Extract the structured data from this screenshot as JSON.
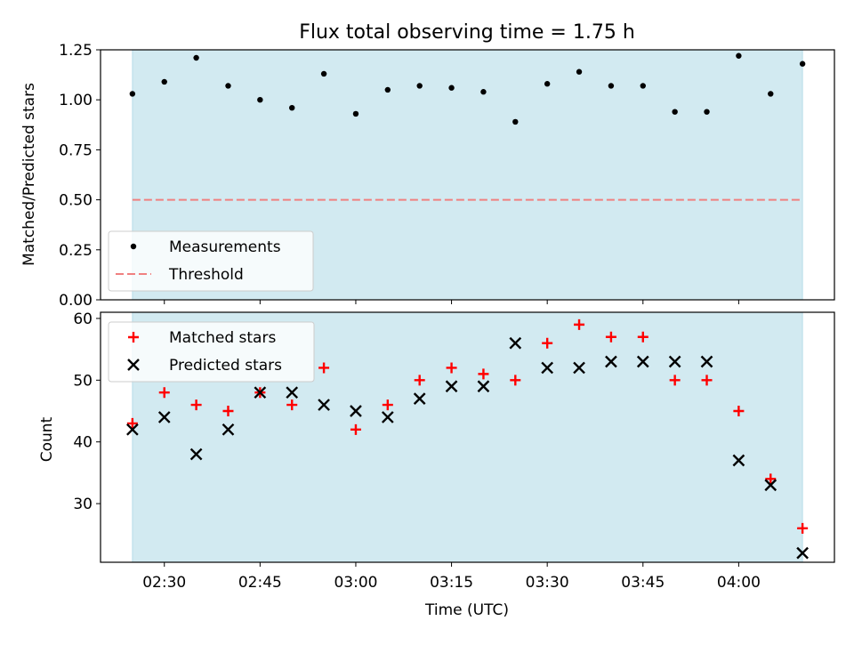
{
  "chart_data": [
    {
      "type": "scatter",
      "title": "Flux total observing time = 1.75 h",
      "ylabel": "Matched/Predicted stars",
      "xlabel": "",
      "ylim": [
        0,
        1.25
      ],
      "yticks": [
        "0.00",
        "0.25",
        "0.50",
        "0.75",
        "1.00",
        "1.25"
      ],
      "x": [
        "02:25",
        "02:30",
        "02:35",
        "02:40",
        "02:45",
        "02:50",
        "02:55",
        "03:00",
        "03:05",
        "03:10",
        "03:15",
        "03:20",
        "03:25",
        "03:30",
        "03:35",
        "03:40",
        "03:45",
        "03:50",
        "03:55",
        "04:00",
        "04:05",
        "04:10"
      ],
      "series": [
        {
          "name": "Measurements",
          "marker": "dot",
          "color": "#000000",
          "values": [
            1.03,
            1.09,
            1.21,
            1.07,
            1.0,
            0.96,
            1.13,
            0.93,
            1.05,
            1.07,
            1.06,
            1.04,
            0.89,
            1.08,
            1.14,
            1.07,
            1.07,
            0.94,
            0.94,
            1.22,
            1.03,
            1.18
          ]
        },
        {
          "name": "Threshold",
          "style": "dashed",
          "color": "#f08080",
          "values": [
            0.5
          ]
        }
      ],
      "shaded_region": {
        "from": "02:25",
        "to": "04:10",
        "color": "#add8e6"
      },
      "legend": "lower-left",
      "grid": false
    },
    {
      "type": "scatter",
      "title": "",
      "ylabel": "Count",
      "xlabel": "Time (UTC)",
      "ylim": [
        20.5,
        61
      ],
      "yticks": [
        "30",
        "40",
        "50",
        "60"
      ],
      "xticks": [
        "02:30",
        "02:45",
        "03:00",
        "03:15",
        "03:30",
        "03:45",
        "04:00"
      ],
      "x": [
        "02:25",
        "02:30",
        "02:35",
        "02:40",
        "02:45",
        "02:50",
        "02:55",
        "03:00",
        "03:05",
        "03:10",
        "03:15",
        "03:20",
        "03:25",
        "03:30",
        "03:35",
        "03:40",
        "03:45",
        "03:50",
        "03:55",
        "04:00",
        "04:05",
        "04:10"
      ],
      "series": [
        {
          "name": "Matched stars",
          "marker": "plus",
          "color": "#ff0000",
          "values": [
            43,
            48,
            46,
            45,
            48,
            46,
            52,
            42,
            46,
            50,
            52,
            51,
            50,
            56,
            59,
            57,
            57,
            50,
            50,
            45,
            34,
            26
          ]
        },
        {
          "name": "Predicted stars",
          "marker": "x",
          "color": "#000000",
          "values": [
            42,
            44,
            38,
            42,
            48,
            48,
            46,
            45,
            44,
            47,
            49,
            49,
            56,
            52,
            52,
            53,
            53,
            53,
            53,
            37,
            33,
            22
          ]
        }
      ],
      "shaded_region": {
        "from": "02:25",
        "to": "04:10",
        "color": "#add8e6"
      },
      "legend": "top-left",
      "grid": false
    }
  ]
}
